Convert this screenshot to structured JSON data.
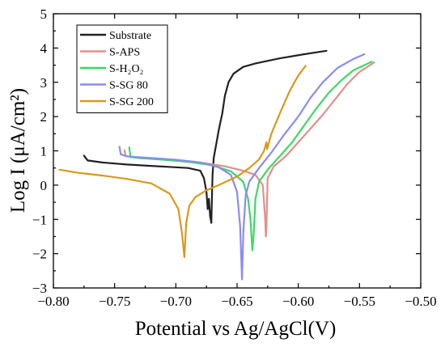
{
  "chart_data": {
    "type": "line",
    "xlabel": "Potential vs Ag/AgCl(V)",
    "ylabel": "Log I (μA/cm²)",
    "xlim": [
      -0.8,
      -0.5
    ],
    "ylim": [
      -3,
      5
    ],
    "xticks": [
      -0.8,
      -0.75,
      -0.7,
      -0.65,
      -0.6,
      -0.55,
      -0.5
    ],
    "xtick_labels": [
      "−0.80",
      "−0.75",
      "−0.70",
      "−0.65",
      "−0.60",
      "−0.55",
      "−0.50"
    ],
    "yticks": [
      -3,
      -2,
      -1,
      0,
      1,
      2,
      3,
      4,
      5
    ],
    "ytick_labels": [
      "−3",
      "−2",
      "−1",
      "0",
      "1",
      "2",
      "3",
      "4",
      "5"
    ],
    "grid": false,
    "legend_position": "top-left",
    "series": [
      {
        "name": "Substrate",
        "color": "#222222",
        "points": [
          [
            -0.775,
            0.86
          ],
          [
            -0.772,
            0.72
          ],
          [
            -0.76,
            0.66
          ],
          [
            -0.74,
            0.6
          ],
          [
            -0.72,
            0.56
          ],
          [
            -0.7,
            0.52
          ],
          [
            -0.69,
            0.5
          ],
          [
            -0.68,
            0.42
          ],
          [
            -0.677,
            0.2
          ],
          [
            -0.675,
            -0.2
          ],
          [
            -0.674,
            -0.7
          ],
          [
            -0.673,
            -0.4
          ],
          [
            -0.672,
            -0.9
          ],
          [
            -0.671,
            -1.1
          ],
          [
            -0.6705,
            -0.3
          ],
          [
            -0.67,
            0.3
          ],
          [
            -0.669,
            0.8
          ],
          [
            -0.667,
            1.2
          ],
          [
            -0.665,
            1.6
          ],
          [
            -0.662,
            2.1
          ],
          [
            -0.66,
            2.6
          ],
          [
            -0.657,
            3.0
          ],
          [
            -0.653,
            3.25
          ],
          [
            -0.645,
            3.45
          ],
          [
            -0.635,
            3.55
          ],
          [
            -0.615,
            3.7
          ],
          [
            -0.595,
            3.82
          ],
          [
            -0.577,
            3.92
          ]
        ]
      },
      {
        "name": "S-APS",
        "color": "#e0908a",
        "points": [
          [
            -0.742,
            1.02
          ],
          [
            -0.741,
            0.85
          ],
          [
            -0.735,
            0.82
          ],
          [
            -0.72,
            0.78
          ],
          [
            -0.7,
            0.73
          ],
          [
            -0.68,
            0.66
          ],
          [
            -0.66,
            0.55
          ],
          [
            -0.645,
            0.42
          ],
          [
            -0.635,
            0.3
          ],
          [
            -0.629,
            0.0
          ],
          [
            -0.627,
            -1.0
          ],
          [
            -0.6265,
            -1.5
          ],
          [
            -0.626,
            -1.2
          ],
          [
            -0.625,
            0.2
          ],
          [
            -0.62,
            0.55
          ],
          [
            -0.61,
            0.85
          ],
          [
            -0.6,
            1.25
          ],
          [
            -0.59,
            1.65
          ],
          [
            -0.58,
            2.05
          ],
          [
            -0.57,
            2.5
          ],
          [
            -0.56,
            2.95
          ],
          [
            -0.55,
            3.3
          ],
          [
            -0.538,
            3.58
          ]
        ]
      },
      {
        "name": "S-H₂O₂",
        "color": "#3bd966",
        "points": [
          [
            -0.738,
            1.1
          ],
          [
            -0.737,
            0.82
          ],
          [
            -0.73,
            0.79
          ],
          [
            -0.71,
            0.74
          ],
          [
            -0.69,
            0.68
          ],
          [
            -0.67,
            0.58
          ],
          [
            -0.655,
            0.4
          ],
          [
            -0.645,
            0.1
          ],
          [
            -0.641,
            -0.4
          ],
          [
            -0.639,
            -1.0
          ],
          [
            -0.6375,
            -1.9
          ],
          [
            -0.6365,
            -1.5
          ],
          [
            -0.635,
            -0.4
          ],
          [
            -0.632,
            0.1
          ],
          [
            -0.625,
            0.45
          ],
          [
            -0.615,
            0.85
          ],
          [
            -0.605,
            1.25
          ],
          [
            -0.595,
            1.75
          ],
          [
            -0.585,
            2.25
          ],
          [
            -0.575,
            2.7
          ],
          [
            -0.565,
            3.05
          ],
          [
            -0.555,
            3.35
          ],
          [
            -0.54,
            3.6
          ]
        ]
      },
      {
        "name": "S-SG 80",
        "color": "#8a8cf2",
        "points": [
          [
            -0.746,
            1.12
          ],
          [
            -0.745,
            0.9
          ],
          [
            -0.74,
            0.84
          ],
          [
            -0.72,
            0.79
          ],
          [
            -0.7,
            0.74
          ],
          [
            -0.68,
            0.66
          ],
          [
            -0.665,
            0.52
          ],
          [
            -0.655,
            0.3
          ],
          [
            -0.65,
            -0.2
          ],
          [
            -0.6475,
            -1.2
          ],
          [
            -0.646,
            -2.75
          ],
          [
            -0.6448,
            -1.3
          ],
          [
            -0.643,
            -0.3
          ],
          [
            -0.64,
            0.1
          ],
          [
            -0.632,
            0.5
          ],
          [
            -0.622,
            0.95
          ],
          [
            -0.612,
            1.45
          ],
          [
            -0.6,
            2.0
          ],
          [
            -0.59,
            2.55
          ],
          [
            -0.58,
            3.0
          ],
          [
            -0.568,
            3.42
          ],
          [
            -0.555,
            3.68
          ],
          [
            -0.546,
            3.82
          ]
        ]
      },
      {
        "name": "S-SG 200",
        "color": "#d89a1c",
        "points": [
          [
            -0.795,
            0.45
          ],
          [
            -0.78,
            0.36
          ],
          [
            -0.76,
            0.28
          ],
          [
            -0.74,
            0.18
          ],
          [
            -0.72,
            0.05
          ],
          [
            -0.705,
            -0.25
          ],
          [
            -0.698,
            -0.7
          ],
          [
            -0.695,
            -1.4
          ],
          [
            -0.693,
            -2.1
          ],
          [
            -0.6915,
            -1.1
          ],
          [
            -0.689,
            -0.6
          ],
          [
            -0.684,
            -0.35
          ],
          [
            -0.675,
            -0.15
          ],
          [
            -0.665,
            0.0
          ],
          [
            -0.65,
            0.25
          ],
          [
            -0.64,
            0.5
          ],
          [
            -0.632,
            0.75
          ],
          [
            -0.628,
            1.0
          ],
          [
            -0.626,
            1.25
          ],
          [
            -0.6255,
            1.05
          ],
          [
            -0.622,
            1.5
          ],
          [
            -0.615,
            2.1
          ],
          [
            -0.607,
            2.75
          ],
          [
            -0.6,
            3.2
          ],
          [
            -0.594,
            3.48
          ]
        ]
      }
    ]
  }
}
